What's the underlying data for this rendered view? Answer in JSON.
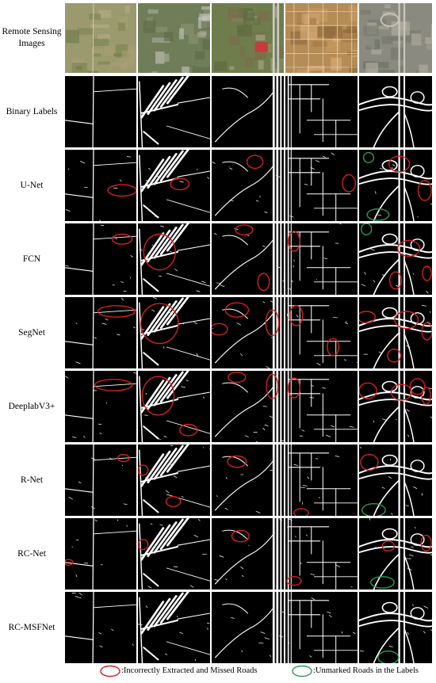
{
  "rows": [
    {
      "label_lines": [
        "Remote Sensing",
        "Images"
      ],
      "type": "images"
    },
    {
      "label_lines": [
        "Binary Labels"
      ],
      "type": "labels"
    },
    {
      "label_lines": [
        "U-Net"
      ],
      "type": "prediction"
    },
    {
      "label_lines": [
        "FCN"
      ],
      "type": "prediction"
    },
    {
      "label_lines": [
        "SegNet"
      ],
      "type": "prediction"
    },
    {
      "label_lines": [
        "DeeplabV3+"
      ],
      "type": "prediction"
    },
    {
      "label_lines": [
        "R-Net"
      ],
      "type": "prediction"
    },
    {
      "label_lines": [
        "RC-Net"
      ],
      "type": "prediction"
    },
    {
      "label_lines": [
        "RC-MSFNet"
      ],
      "type": "prediction"
    }
  ],
  "legend": {
    "red_text": ":Incorrectly Extracted and Missed Roads",
    "green_text": ":Unmarked Roads in the Labels",
    "red_color": "#d62020",
    "green_color": "#2f9a55"
  },
  "colors": {
    "background": "#ffffff",
    "mask": "#000000",
    "road": "#ffffff"
  },
  "icons": [
    "red-ellipse-icon",
    "green-ellipse-icon"
  ]
}
